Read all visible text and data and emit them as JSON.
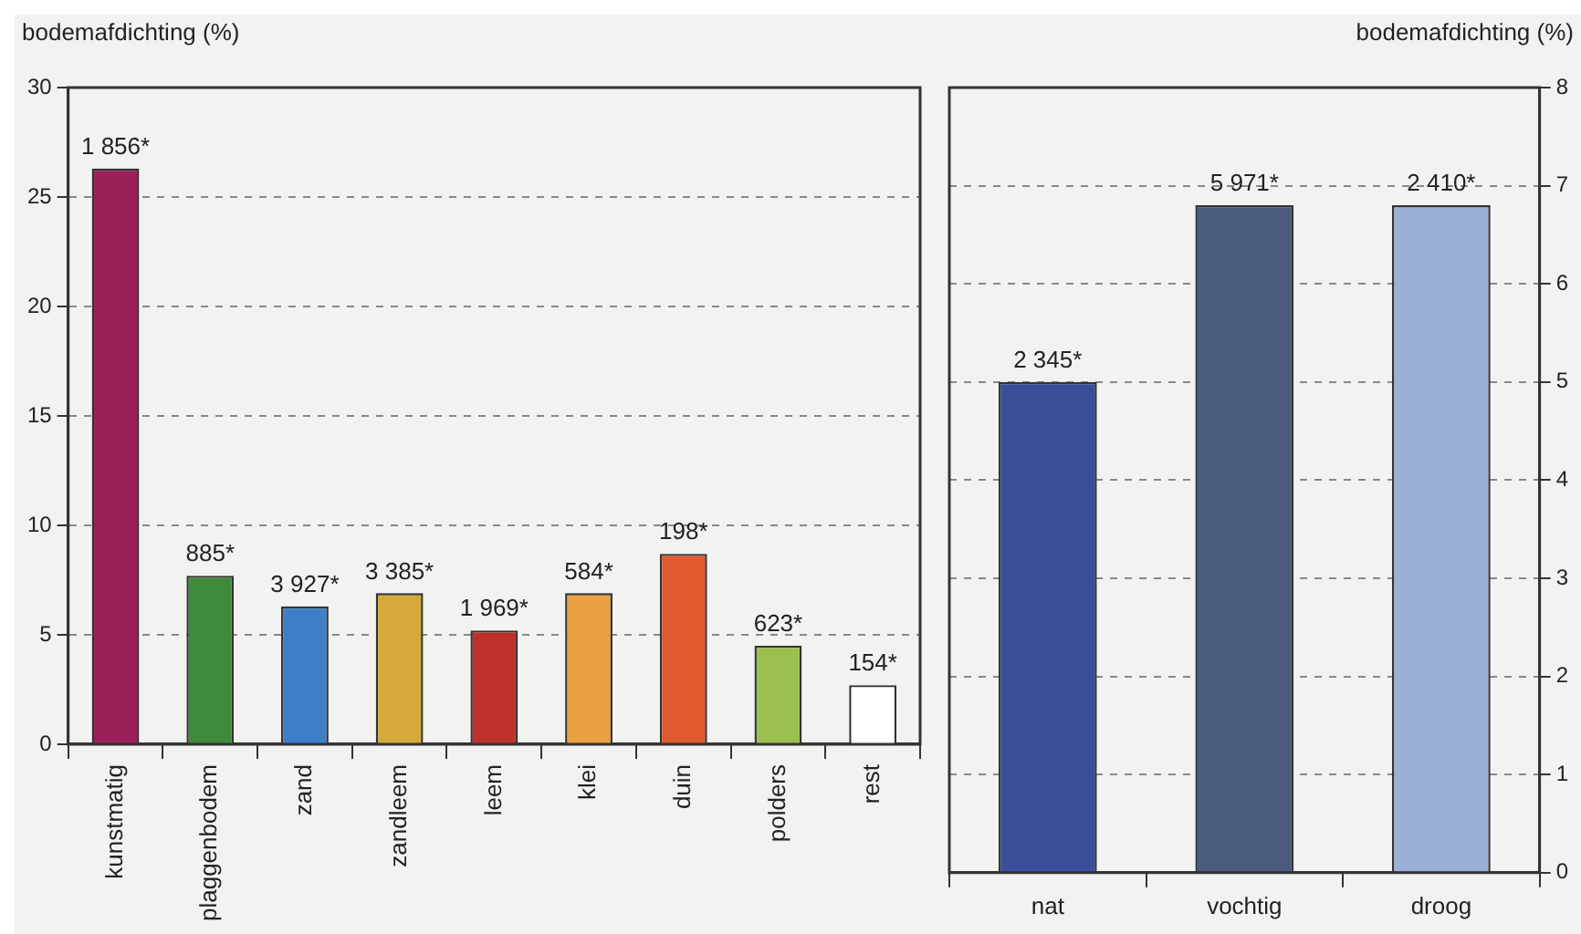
{
  "chart_data": [
    {
      "type": "bar",
      "ylabel": "bodemafdichting (%)",
      "categories": [
        "kunstmatig",
        "plaggenbodem",
        "zand",
        "zandleem",
        "leem",
        "klei",
        "duin",
        "polders",
        "rest"
      ],
      "values": [
        26.3,
        7.7,
        6.3,
        6.9,
        5.2,
        6.9,
        8.7,
        4.5,
        2.7
      ],
      "colors": [
        "#9c1f5a",
        "#3f8a3c",
        "#3f7dc8",
        "#d4aa3c",
        "#c0302a",
        "#e8a040",
        "#e05a30",
        "#9cc050",
        "#ffffff"
      ],
      "annotations": [
        {
          "text": "1 856*",
          "x": "kunstmatig",
          "y": 26.3
        },
        {
          "text": "885*",
          "x": "plaggenbodem",
          "y": 7.7
        },
        {
          "text": "3 927*",
          "x": "zand",
          "y": 6.3
        },
        {
          "text": "3 385*",
          "x": "zandleem",
          "y": 6.9
        },
        {
          "text": "1 969*",
          "x": "leem",
          "y": 5.2
        },
        {
          "text": "584*",
          "x": "klei",
          "y": 6.9
        },
        {
          "text": "198*",
          "x": "duin",
          "y": 8.7
        },
        {
          "text": "623*",
          "x": "polders",
          "y": 4.5
        },
        {
          "text": "154*",
          "x": "rest",
          "y": 2.7
        }
      ],
      "ylim": [
        0,
        30
      ],
      "yticks": [
        0,
        5,
        10,
        15,
        20,
        25,
        30
      ],
      "grid": "y"
    },
    {
      "type": "bar",
      "ylabel": "bodemafdichting (%)",
      "categories": [
        "nat",
        "vochtig",
        "droog"
      ],
      "values": [
        5.0,
        6.8,
        6.8
      ],
      "colors": [
        "#3a4e9a",
        "#4a5a7c",
        "#9ab0d8"
      ],
      "annotations": [
        {
          "text": "2 345*",
          "x": "nat",
          "y": 5.0
        },
        {
          "text": "5 971*",
          "x": "vochtig",
          "y": 6.8
        },
        {
          "text": "2 410*",
          "x": "droog",
          "y": 6.8
        }
      ],
      "ylim": [
        0,
        8
      ],
      "yticks": [
        0,
        1,
        2,
        3,
        4,
        5,
        6,
        7,
        8
      ],
      "grid": "y"
    }
  ]
}
